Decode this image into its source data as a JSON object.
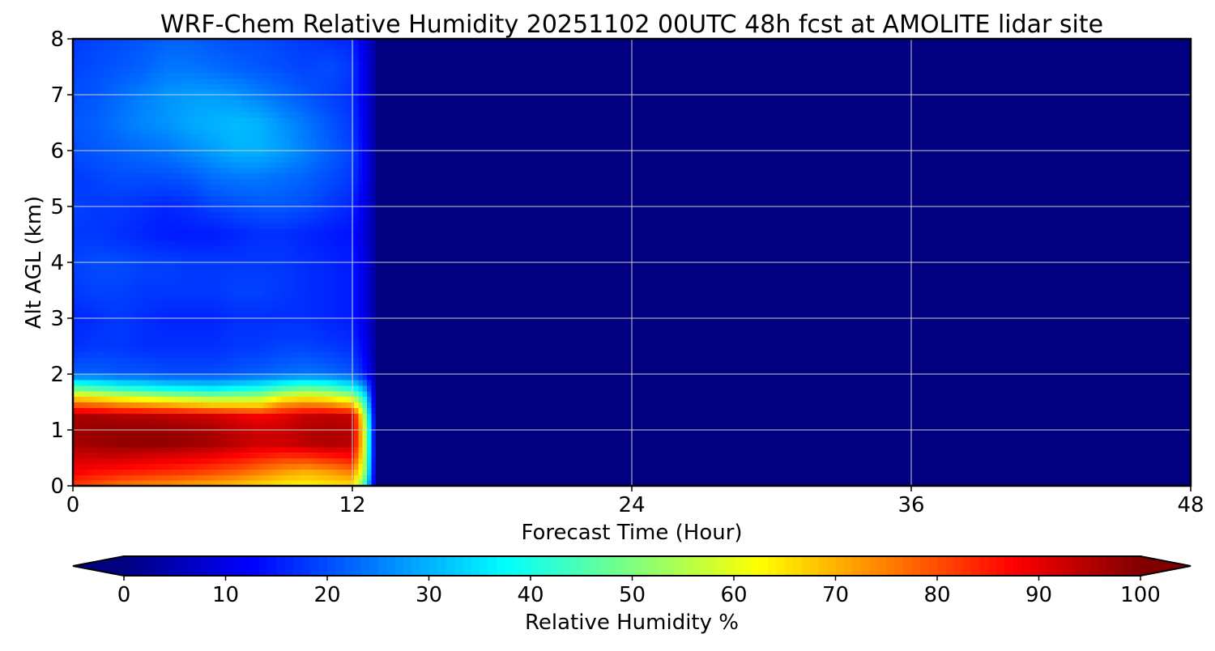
{
  "chart_data": {
    "type": "heatmap",
    "title": "WRF-Chem Relative Humidity 20251102 00UTC 48h fcst at AMOLITE lidar site",
    "xlabel": "Forecast Time (Hour)",
    "ylabel": "Alt AGL (km)",
    "xlim": [
      0,
      48
    ],
    "ylim": [
      0,
      8
    ],
    "xticks": [
      0,
      12,
      24,
      36,
      48
    ],
    "yticks": [
      0,
      1,
      2,
      3,
      4,
      5,
      6,
      7,
      8
    ],
    "grid": true,
    "colorbar": {
      "label": "Relative Humidity %",
      "range": [
        0,
        100
      ],
      "ticks": [
        0,
        10,
        20,
        30,
        40,
        50,
        60,
        70,
        80,
        90,
        100
      ],
      "extend": "both",
      "colormap": "jet"
    },
    "x": [
      0,
      1,
      2,
      3,
      4,
      5,
      6,
      7,
      8,
      9,
      10,
      11,
      12,
      12.5,
      13,
      48
    ],
    "y": [
      0,
      0.25,
      0.5,
      0.75,
      1.0,
      1.25,
      1.5,
      1.75,
      2.0,
      2.5,
      3.0,
      3.5,
      4.0,
      4.5,
      5.0,
      5.5,
      6.0,
      6.5,
      7.0,
      7.5,
      8.0
    ],
    "z": [
      [
        82,
        79,
        76,
        74,
        73,
        71,
        70,
        68,
        66,
        64,
        63,
        64,
        65,
        45,
        5,
        0
      ],
      [
        88,
        86,
        85,
        84,
        83,
        82,
        80,
        78,
        75,
        72,
        70,
        72,
        75,
        55,
        5,
        0
      ],
      [
        92,
        92,
        92,
        91,
        90,
        89,
        88,
        86,
        84,
        82,
        82,
        84,
        86,
        60,
        5,
        0
      ],
      [
        96,
        97,
        98,
        98,
        98,
        97,
        96,
        94,
        92,
        92,
        94,
        95,
        94,
        62,
        5,
        0
      ],
      [
        97,
        98,
        98,
        98,
        98,
        97,
        96,
        94,
        93,
        93,
        95,
        96,
        95,
        62,
        5,
        0
      ],
      [
        96,
        96,
        95,
        95,
        94,
        93,
        92,
        90,
        88,
        90,
        93,
        94,
        93,
        58,
        5,
        0
      ],
      [
        75,
        73,
        70,
        68,
        66,
        64,
        62,
        62,
        62,
        70,
        72,
        70,
        65,
        45,
        5,
        0
      ],
      [
        48,
        45,
        42,
        40,
        38,
        37,
        36,
        38,
        40,
        45,
        48,
        46,
        40,
        30,
        5,
        0
      ],
      [
        22,
        22,
        21,
        21,
        20,
        20,
        20,
        21,
        22,
        23,
        24,
        23,
        21,
        15,
        4,
        0
      ],
      [
        17,
        18,
        18,
        17,
        17,
        17,
        17,
        18,
        18,
        19,
        19,
        18,
        17,
        12,
        3,
        0
      ],
      [
        16,
        17,
        18,
        17,
        16,
        16,
        16,
        17,
        17,
        17,
        17,
        16,
        15,
        10,
        3,
        0
      ],
      [
        18,
        19,
        19,
        18,
        18,
        18,
        18,
        19,
        19,
        18,
        17,
        16,
        15,
        10,
        3,
        0
      ],
      [
        19,
        20,
        20,
        19,
        19,
        18,
        18,
        18,
        18,
        18,
        17,
        16,
        15,
        10,
        3,
        0
      ],
      [
        18,
        18,
        17,
        16,
        15,
        15,
        15,
        16,
        17,
        17,
        16,
        15,
        14,
        9,
        3,
        0
      ],
      [
        19,
        18,
        18,
        17,
        16,
        17,
        19,
        20,
        21,
        21,
        20,
        18,
        16,
        10,
        3,
        0
      ],
      [
        18,
        19,
        20,
        20,
        20,
        21,
        23,
        24,
        24,
        23,
        22,
        20,
        18,
        12,
        3,
        0
      ],
      [
        20,
        21,
        22,
        23,
        24,
        26,
        28,
        30,
        30,
        28,
        25,
        22,
        19,
        12,
        3,
        0
      ],
      [
        21,
        22,
        24,
        26,
        27,
        29,
        30,
        31,
        30,
        27,
        24,
        21,
        18,
        11,
        3,
        0
      ],
      [
        20,
        21,
        23,
        25,
        27,
        28,
        28,
        27,
        25,
        23,
        21,
        19,
        17,
        11,
        3,
        0
      ],
      [
        19,
        20,
        21,
        22,
        24,
        24,
        23,
        22,
        21,
        20,
        19,
        20,
        18,
        11,
        3,
        0
      ],
      [
        18,
        19,
        20,
        21,
        22,
        22,
        21,
        20,
        20,
        19,
        18,
        17,
        16,
        10,
        3,
        0
      ]
    ]
  }
}
